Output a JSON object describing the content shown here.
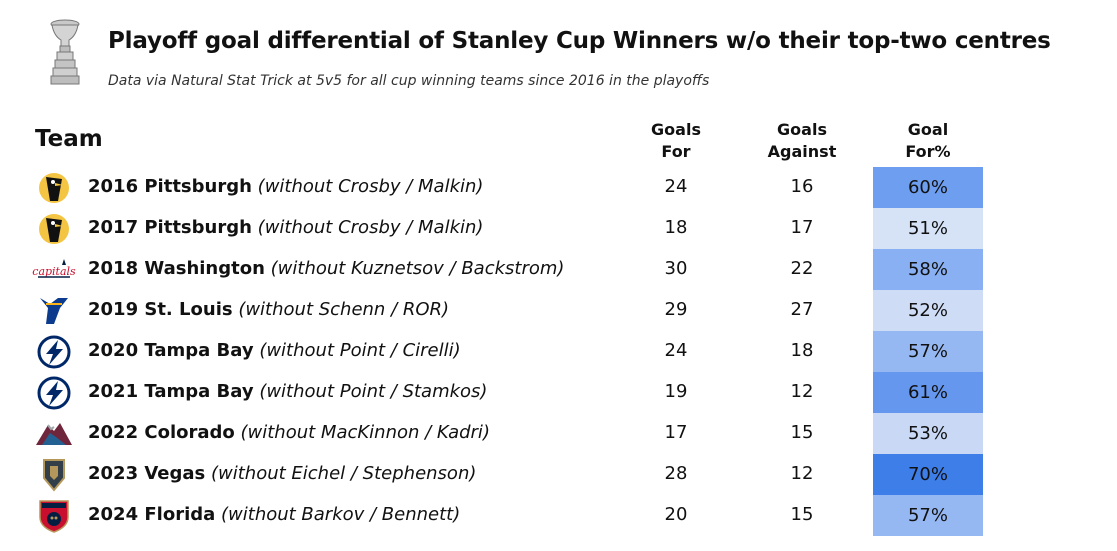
{
  "title": "Playoff goal differential of Stanley Cup Winners w/o their top-two centres",
  "subtitle": "Data via Natural Stat Trick at 5v5 for all cup winning teams since 2016 in the playoffs",
  "headers": {
    "team": "Team",
    "goals_for_1": "Goals",
    "goals_for_2": "For",
    "goals_against_1": "Goals",
    "goals_against_2": "Against",
    "goal_pct_1": "Goal",
    "goal_pct_2": "For%"
  },
  "rows": [
    {
      "team": "2016 Pittsburgh",
      "without": "(without Crosby / Malkin)",
      "gf": "24",
      "ga": "16",
      "pct": "60%",
      "color": "#6d9ef0",
      "logo": "penguins-logo"
    },
    {
      "team": "2017 Pittsburgh",
      "without": "(without Crosby / Malkin)",
      "gf": "18",
      "ga": "17",
      "pct": "51%",
      "color": "#d6e2f6",
      "logo": "penguins-logo"
    },
    {
      "team": "2018 Washington",
      "without": "(without Kuznetsov / Backstrom)",
      "gf": "30",
      "ga": "22",
      "pct": "58%",
      "color": "#88b0f2",
      "logo": "capitals-logo"
    },
    {
      "team": "2019 St. Louis",
      "without": "(without Schenn / ROR)",
      "gf": "29",
      "ga": "27",
      "pct": "52%",
      "color": "#cfdcf6",
      "logo": "blues-logo"
    },
    {
      "team": "2020 Tampa Bay",
      "without": "(without Point / Cirelli)",
      "gf": "24",
      "ga": "18",
      "pct": "57%",
      "color": "#96b8f2",
      "logo": "lightning-logo"
    },
    {
      "team": "2021 Tampa Bay",
      "without": "(without Point / Stamkos)",
      "gf": "19",
      "ga": "12",
      "pct": "61%",
      "color": "#6597ee",
      "logo": "lightning-logo"
    },
    {
      "team": "2022 Colorado",
      "without": "(without MacKinnon / Kadri)",
      "gf": "17",
      "ga": "15",
      "pct": "53%",
      "color": "#c8d8f5",
      "logo": "avalanche-logo"
    },
    {
      "team": "2023 Vegas",
      "without": "(without Eichel / Stephenson)",
      "gf": "28",
      "ga": "12",
      "pct": "70%",
      "color": "#3d7ee9",
      "logo": "golden-knights-logo"
    },
    {
      "team": "2024 Florida",
      "without": "(without Barkov / Bennett)",
      "gf": "20",
      "ga": "15",
      "pct": "57%",
      "color": "#96b8f2",
      "logo": "panthers-logo"
    }
  ],
  "chart_data": {
    "type": "table",
    "title": "Playoff goal differential of Stanley Cup Winners w/o their top-two centres",
    "subtitle": "Data via Natural Stat Trick at 5v5 for all cup winning teams since 2016 in the playoffs",
    "columns": [
      "Team",
      "Goals For",
      "Goals Against",
      "Goal For%"
    ],
    "rows": [
      [
        "2016 Pittsburgh (without Crosby / Malkin)",
        24,
        16,
        60
      ],
      [
        "2017 Pittsburgh (without Crosby / Malkin)",
        18,
        17,
        51
      ],
      [
        "2018 Washington (without Kuznetsov / Backstrom)",
        30,
        22,
        58
      ],
      [
        "2019 St. Louis (without Schenn / ROR)",
        29,
        27,
        52
      ],
      [
        "2020 Tampa Bay (without Point / Cirelli)",
        24,
        18,
        57
      ],
      [
        "2021 Tampa Bay (without Point / Stamkos)",
        19,
        12,
        61
      ],
      [
        "2022 Colorado (without MacKinnon / Kadri)",
        17,
        15,
        53
      ],
      [
        "2023 Vegas (without Eichel / Stephenson)",
        28,
        12,
        70
      ],
      [
        "2024 Florida (without Barkov / Bennett)",
        20,
        15,
        57
      ]
    ]
  }
}
